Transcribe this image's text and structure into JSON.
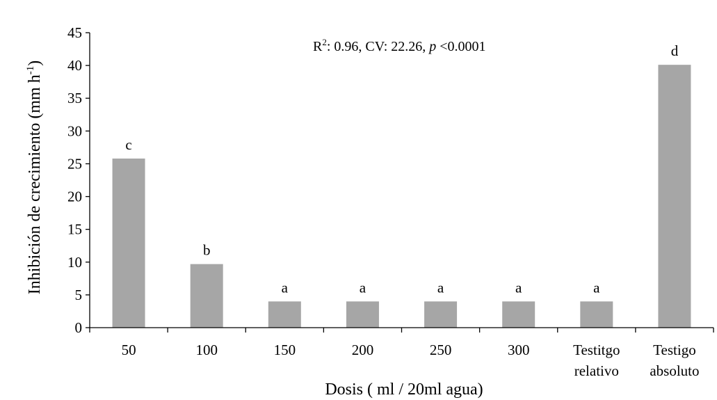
{
  "chart_data": {
    "type": "bar",
    "title": "",
    "xlabel": "Dosis ( ml / 20ml agua)",
    "ylabel": "Inhibición de crecimiento (mm h",
    "ylabel_sup": "-1",
    "ylabel_end": ")",
    "ylim": [
      0,
      45
    ],
    "yticks": [
      0,
      5,
      10,
      15,
      20,
      25,
      30,
      35,
      40,
      45
    ],
    "grid": false,
    "legend": "none",
    "bar_color": "#a6a6a6",
    "categories": [
      [
        "50"
      ],
      [
        "100"
      ],
      [
        "150"
      ],
      [
        "200"
      ],
      [
        "250"
      ],
      [
        "300"
      ],
      [
        "Testitgo",
        "relativo"
      ],
      [
        "Testigo",
        "absoluto"
      ]
    ],
    "values": [
      25.8,
      9.7,
      4.0,
      4.0,
      4.0,
      4.0,
      4.0,
      40.1
    ],
    "significance_letters": [
      "c",
      "b",
      "a",
      "a",
      "a",
      "a",
      "a",
      "d"
    ],
    "annotation": {
      "r_label": "R",
      "r_sup": "2",
      "r_rest": ": 0.96, CV: 22.26, ",
      "p_label": "p",
      "p_rest": " <0.0001"
    }
  }
}
